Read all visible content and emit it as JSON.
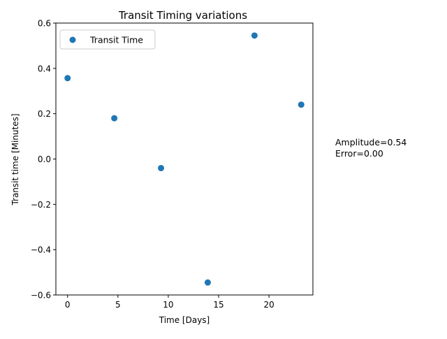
{
  "chart_data": {
    "type": "scatter",
    "title": "Transit Timing variations",
    "xlabel": "Time [Days]",
    "ylabel": "Transit time [Minutes]",
    "xlim": [
      -1.16,
      24.36
    ],
    "ylim": [
      -0.6,
      0.6
    ],
    "x_ticks": [
      0,
      5,
      10,
      15,
      20
    ],
    "x_tick_labels": [
      "0",
      "5",
      "10",
      "15",
      "20"
    ],
    "y_ticks": [
      -0.6,
      -0.4,
      -0.2,
      0.0,
      0.2,
      0.4,
      0.6
    ],
    "y_tick_labels": [
      "−0.6",
      "−0.4",
      "−0.2",
      "0.0",
      "0.2",
      "0.4",
      "0.6"
    ],
    "grid": false,
    "legend_position": "upper left",
    "series": [
      {
        "name": "Transit Time",
        "color": "#1f77b4",
        "marker": "circle",
        "x": [
          0.0,
          4.64,
          9.28,
          13.92,
          18.56,
          23.2
        ],
        "y": [
          0.357,
          0.18,
          -0.04,
          -0.545,
          0.545,
          0.24
        ]
      }
    ],
    "annotations": [
      "Amplitude=0.54",
      "Error=0.00"
    ]
  }
}
